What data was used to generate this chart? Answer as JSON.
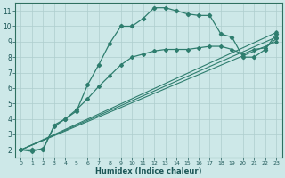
{
  "xlabel": "Humidex (Indice chaleur)",
  "xlim": [
    -0.5,
    23.5
  ],
  "ylim": [
    1.5,
    11.5
  ],
  "xticks": [
    0,
    1,
    2,
    3,
    4,
    5,
    6,
    7,
    8,
    9,
    10,
    11,
    12,
    13,
    14,
    15,
    16,
    17,
    18,
    19,
    20,
    21,
    22,
    23
  ],
  "yticks": [
    2,
    3,
    4,
    5,
    6,
    7,
    8,
    9,
    10,
    11
  ],
  "bg_color": "#cde8e8",
  "line_color": "#2e7d6e",
  "grid_color": "#aecece",
  "curve1": [
    [
      0,
      2
    ],
    [
      1,
      2
    ],
    [
      2,
      2
    ],
    [
      3,
      3.6
    ],
    [
      4,
      4.0
    ],
    [
      5,
      4.5
    ],
    [
      6,
      6.2
    ],
    [
      7,
      7.5
    ],
    [
      8,
      8.9
    ],
    [
      9,
      10.0
    ],
    [
      10,
      10.0
    ],
    [
      11,
      10.5
    ],
    [
      12,
      11.2
    ],
    [
      13,
      11.2
    ],
    [
      14,
      11.0
    ],
    [
      15,
      10.8
    ],
    [
      16,
      10.7
    ],
    [
      17,
      10.7
    ],
    [
      18,
      9.5
    ],
    [
      19,
      9.3
    ],
    [
      20,
      8.0
    ],
    [
      21,
      8.0
    ],
    [
      22,
      8.5
    ],
    [
      23,
      9.5
    ]
  ],
  "curve2": [
    [
      0,
      2
    ],
    [
      1,
      1.9
    ],
    [
      2,
      2.1
    ],
    [
      3,
      3.5
    ],
    [
      4,
      4.0
    ],
    [
      5,
      4.6
    ],
    [
      6,
      5.3
    ],
    [
      7,
      6.1
    ],
    [
      8,
      6.8
    ],
    [
      9,
      7.5
    ],
    [
      10,
      8.0
    ],
    [
      11,
      8.2
    ],
    [
      12,
      8.4
    ],
    [
      13,
      8.5
    ],
    [
      14,
      8.5
    ],
    [
      15,
      8.5
    ],
    [
      16,
      8.6
    ],
    [
      17,
      8.7
    ],
    [
      18,
      8.7
    ],
    [
      19,
      8.5
    ],
    [
      20,
      8.2
    ],
    [
      21,
      8.5
    ],
    [
      22,
      8.6
    ],
    [
      23,
      9.2
    ]
  ],
  "line1": [
    [
      0,
      2
    ],
    [
      23,
      9.0
    ]
  ],
  "line2": [
    [
      0,
      2
    ],
    [
      23,
      9.3
    ]
  ],
  "line3": [
    [
      0,
      2
    ],
    [
      23,
      9.6
    ]
  ]
}
